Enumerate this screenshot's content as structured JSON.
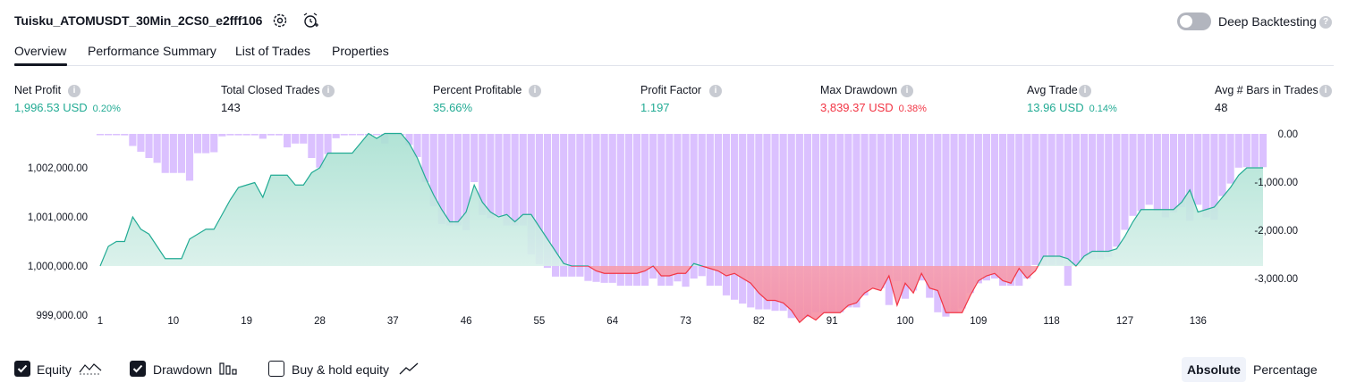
{
  "header": {
    "strategy_title": "Tuisku_ATOMUSDT_30Min_2CS0_e2fff106",
    "settings_icon": "gear-icon",
    "alert_icon": "alarm-clock-plus-icon",
    "deep_backtesting_label": "Deep Backtesting",
    "deep_backtesting_on": false
  },
  "tabs": [
    {
      "label": "Overview",
      "active": true
    },
    {
      "label": "Performance Summary",
      "active": false
    },
    {
      "label": "List of Trades",
      "active": false
    },
    {
      "label": "Properties",
      "active": false
    }
  ],
  "stats": {
    "net_profit": {
      "label": "Net Profit",
      "value": "1,996.53 USD",
      "sub": "0.20%"
    },
    "total_closed_trades": {
      "label": "Total Closed Trades",
      "value": "143"
    },
    "percent_profitable": {
      "label": "Percent Profitable",
      "value": "35.66%"
    },
    "profit_factor": {
      "label": "Profit Factor",
      "value": "1.197"
    },
    "max_drawdown": {
      "label": "Max Drawdown",
      "value": "3,839.37 USD",
      "sub": "0.38%"
    },
    "avg_trade": {
      "label": "Avg Trade",
      "value": "13.96 USD",
      "sub": "0.14%"
    },
    "avg_bars": {
      "label": "Avg # Bars in Trades",
      "value": "48"
    }
  },
  "colors": {
    "green": "#22ab94",
    "red": "#f23645",
    "drawdown_bar": "#d5b6ff",
    "equity_fill": "#c9ece2"
  },
  "chart_data": {
    "type": "area",
    "x_ticks": [
      "1",
      "10",
      "19",
      "28",
      "37",
      "46",
      "55",
      "64",
      "73",
      "82",
      "91",
      "100",
      "109",
      "118",
      "127",
      "136"
    ],
    "left_axis_ticks": [
      "1,002,000.00",
      "1,001,000.00",
      "1,000,000.00",
      "999,000.00"
    ],
    "right_axis_ticks": [
      "0.00",
      "-1,000.00",
      "-2,000.00",
      "-3,000.00"
    ],
    "left_ylim": [
      998700,
      1002700
    ],
    "right_ylim": [
      -4000,
      0
    ],
    "equity_baseline": 1000000,
    "series": [
      {
        "name": "Equity",
        "values": [
          1000000,
          1000400,
          1000500,
          1000500,
          1001000,
          1000750,
          1000650,
          1000400,
          1000150,
          1000150,
          1000150,
          1000550,
          1000650,
          1000750,
          1000750,
          1001050,
          1001350,
          1001600,
          1001650,
          1001700,
          1001400,
          1001850,
          1001850,
          1001850,
          1001650,
          1001650,
          1001900,
          1002000,
          1002300,
          1002300,
          1002300,
          1002300,
          1002500,
          1002700,
          1002600,
          1002700,
          1002700,
          1002700,
          1002500,
          1002200,
          1001800,
          1001450,
          1001150,
          1000900,
          1000900,
          1001100,
          1001650,
          1001300,
          1001100,
          1001000,
          1001050,
          1000900,
          1001050,
          1001050,
          1000800,
          1000550,
          1000300,
          1000050,
          1000000,
          1000000,
          1000000,
          999900,
          999850,
          999850,
          999850,
          999850,
          999850,
          999900,
          1000000,
          999800,
          999800,
          999850,
          999850,
          1000050,
          1000000,
          999950,
          999900,
          999800,
          999850,
          999750,
          999650,
          999450,
          999300,
          999300,
          999250,
          999100,
          998850,
          999000,
          998900,
          999050,
          999050,
          999050,
          999200,
          999250,
          999450,
          999550,
          999500,
          999800,
          999200,
          999650,
          999450,
          999850,
          999550,
          999500,
          999050,
          999050,
          999050,
          999400,
          999700,
          999800,
          999850,
          999700,
          999650,
          999950,
          999750,
          999900,
          1000200,
          1000200,
          1000200,
          1000150,
          1000000,
          1000200,
          1000300,
          1000300,
          1000300,
          1000350,
          1000600,
          1000900,
          1001150,
          1001150,
          1001150,
          1001150,
          1001150,
          1001300,
          1001550,
          1001100,
          1001150,
          1001200,
          1001400,
          1001600,
          1001850,
          1002000,
          1002000,
          1002000
        ]
      },
      {
        "name": "Drawdown",
        "values": [
          -10,
          -20,
          -20,
          -30,
          -250,
          -370,
          -500,
          -600,
          -810,
          -810,
          -810,
          -970,
          -400,
          -400,
          -380,
          -50,
          -30,
          -30,
          -30,
          -30,
          -100,
          -30,
          -30,
          -280,
          -200,
          -200,
          -500,
          -700,
          -420,
          -90,
          -30,
          0,
          0,
          0,
          0,
          -200,
          0,
          0,
          -230,
          -480,
          -1000,
          -1500,
          -1870,
          -1900,
          -1900,
          -2000,
          -1000,
          -1680,
          -1750,
          -1700,
          -1900,
          -1900,
          -1900,
          -2500,
          -2700,
          -2780,
          -2960,
          -2960,
          -2960,
          -2960,
          -3050,
          -3070,
          -3090,
          -3090,
          -3150,
          -3150,
          -3150,
          -3150,
          -3000,
          -3150,
          -3150,
          -3060,
          -3170,
          -3000,
          -2950,
          -3150,
          -3150,
          -3350,
          -3440,
          -3520,
          -3600,
          -3640,
          -3640,
          -3670,
          -3670,
          -3820,
          -3840,
          -3800,
          -3700,
          -3720,
          -3700,
          -3700,
          -3600,
          -3600,
          -3350,
          -3200,
          -3200,
          -3550,
          -3050,
          -3420,
          -3250,
          -3040,
          -3400,
          -3700,
          -3790,
          -3700,
          -3620,
          -3300,
          -3100,
          -3040,
          -3000,
          -3150,
          -3150,
          -3150,
          -3000,
          -2720,
          -2720,
          -2720,
          -2720,
          -3150,
          -2720,
          -2600,
          -2600,
          -2600,
          -2550,
          -2340,
          -1990,
          -1700,
          -1600,
          -1470,
          -1600,
          -1730,
          -1630,
          -1520,
          -1800,
          -1470,
          -1730,
          -1780,
          -1290,
          -1030,
          -700,
          -690,
          -690,
          -690
        ]
      }
    ],
    "legend": [
      {
        "label": "Equity",
        "checked": true,
        "icon": "equity-line-icon"
      },
      {
        "label": "Drawdown",
        "checked": true,
        "icon": "drawdown-bars-icon"
      },
      {
        "label": "Buy & hold equity",
        "checked": false,
        "icon": "buyhold-line-icon"
      }
    ],
    "scale_modes": {
      "absolute": "Absolute",
      "percentage": "Percentage",
      "selected": "Absolute"
    }
  }
}
